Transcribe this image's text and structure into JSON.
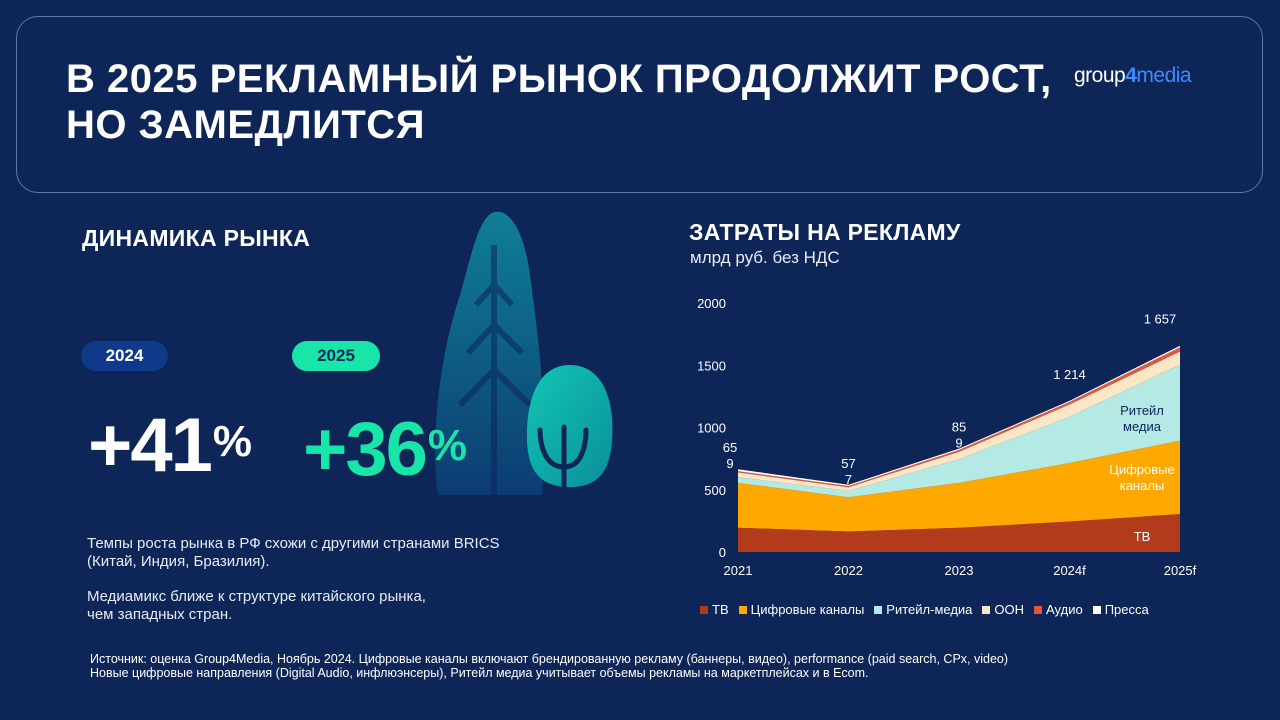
{
  "header": {
    "title": "В 2025 РЕКЛАМНЫЙ РЫНОК ПРОДОЛЖИТ РОСТ, НО ЗАМЕДЛИТСЯ",
    "logo_part1": "group",
    "logo_part2": "4",
    "logo_part3": "media"
  },
  "left": {
    "section_title": "ДИНАМИКА РЫНКА",
    "year1_label": "2024",
    "year1_value": "+41",
    "year2_label": "2025",
    "year2_value": "+36",
    "percent_sign": "%",
    "note1_line1": "Темпы роста рынка в РФ схожи с другими странами BRICS",
    "note1_line2": "(Китай, Индия, Бразилия).",
    "note2_line1": "Медиамикс ближе к структуре китайского рынка,",
    "note2_line2": "чем западных стран."
  },
  "source": {
    "line1": "Источник: оценка Group4Media, Ноябрь 2024. Цифровые каналы включают брендированную рекламу  (баннеры, видео), performance (paid search, CPx, video)",
    "line2": "Новые цифровые направления (Digital Audio, инфлюэнсеры),  Ритейл медиа учитывает объемы рекламы на маркетплейсах и в Ecom."
  },
  "colors": {
    "background": "#0d2557",
    "accent_green": "#17e6a8",
    "pill_2024": "#0f3a8a",
    "tv": "#b23b1c",
    "digital": "#ffa800",
    "retail": "#b4e9e4",
    "ooh": "#fbe7c6",
    "audio": "#e2573b",
    "press": "#ffffff"
  },
  "chart_data": {
    "type": "area",
    "title": "ЗАТРАТЫ НА РЕКЛАМУ",
    "subtitle": "млрд руб. без НДС",
    "x": [
      "2021",
      "2022",
      "2023",
      "2024f",
      "2025f"
    ],
    "ylim": [
      0,
      2000
    ],
    "yticks": [
      "0",
      "500",
      "1000",
      "1500",
      "2000"
    ],
    "stacked": true,
    "series": [
      {
        "name": "ТВ",
        "values": [
          195,
          165,
          195,
          245,
          305
        ]
      },
      {
        "name": "Цифровые  каналы",
        "values": [
          360,
          275,
          360,
          470,
          590
        ]
      },
      {
        "name": "Ритейл-медиа",
        "values": [
          45,
          50,
          190,
          370,
          610
        ]
      },
      {
        "name": "OOH",
        "values": [
          40,
          30,
          60,
          100,
          105
        ]
      },
      {
        "name": "Аудио",
        "values": [
          10,
          10,
          15,
          20,
          35
        ]
      },
      {
        "name": "Пресса",
        "values": [
          15,
          10,
          10,
          9,
          12
        ]
      }
    ],
    "totals_labels": [
      "",
      "",
      "",
      "1 214",
      "1 657"
    ],
    "annotations": [
      {
        "x": "2021",
        "upper": "65",
        "lower": "9"
      },
      {
        "x": "2022",
        "upper": "57",
        "lower": "7"
      },
      {
        "x": "2023",
        "upper": "85",
        "lower": "9"
      }
    ],
    "area_labels": {
      "retail_line1": "Ритейл",
      "retail_line2": "медиа",
      "digital_line1": "Цифровые",
      "digital_line2": "каналы",
      "tv": "ТВ"
    },
    "legend_position": "bottom",
    "grid": false
  }
}
